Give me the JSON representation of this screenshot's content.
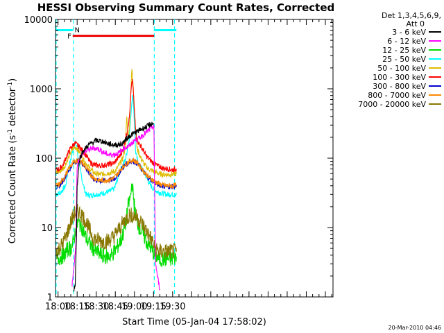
{
  "chart_data": {
    "type": "line",
    "title": "HESSI Observing Summary Count Rates, Corrected",
    "xlabel": "Start Time (05-Jan-04 17:58:02)",
    "ylabel": "Corrected Count Rate (s",
    "ylabel_sup1": "-1",
    "ylabel_mid": " detector",
    "ylabel_sup2": "-1",
    "ylabel_end": ")",
    "yscale": "log",
    "ylim": [
      1,
      10000
    ],
    "xlim_min": [
      1078,
      1296
    ],
    "x_ticks": [
      {
        "min": 1080,
        "label": "18:00"
      },
      {
        "min": 1095,
        "label": "18:15"
      },
      {
        "min": 1110,
        "label": "18:30"
      },
      {
        "min": 1125,
        "label": "18:45"
      },
      {
        "min": 1140,
        "label": "19:00"
      },
      {
        "min": 1155,
        "label": "19:15"
      },
      {
        "min": 1170,
        "label": "19:30"
      }
    ],
    "y_ticks": [
      {
        "value": 1,
        "label": "1"
      },
      {
        "value": 10,
        "label": "10"
      },
      {
        "value": 100,
        "label": "100"
      },
      {
        "value": 1000,
        "label": "1000"
      },
      {
        "value": 10000,
        "label": "10000"
      }
    ],
    "legend_header": [
      "Det 1,3,4,5,6,9,",
      "Att 0"
    ],
    "legend_position": "top-right outside plot",
    "annotations": {
      "flag_f": "F",
      "flag_n": "N",
      "timestamp": "20-Mar-2010 04:46"
    },
    "series": [
      {
        "name": "3 - 6 keV",
        "color": "#000000",
        "points": [
          [
            1092.5,
            1.3
          ],
          [
            1093.5,
            1.5
          ],
          [
            1094.5,
            8
          ],
          [
            1095,
            40
          ],
          [
            1096,
            65
          ],
          [
            1097,
            100
          ],
          [
            1100,
            130
          ],
          [
            1105,
            160
          ],
          [
            1110,
            180
          ],
          [
            1115,
            175
          ],
          [
            1120,
            160
          ],
          [
            1125,
            155
          ],
          [
            1130,
            160
          ],
          [
            1135,
            200
          ],
          [
            1138,
            220
          ],
          [
            1142,
            240
          ],
          [
            1145,
            260
          ],
          [
            1150,
            285
          ],
          [
            1153,
            310
          ],
          [
            1155,
            320
          ]
        ]
      },
      {
        "name": "6 - 12 keV",
        "color": "#ff00ff",
        "points": [
          [
            1091,
            1.4
          ],
          [
            1093,
            3.5
          ],
          [
            1094,
            5.5
          ],
          [
            1095,
            80
          ],
          [
            1098,
            110
          ],
          [
            1100,
            120
          ],
          [
            1103,
            130
          ],
          [
            1108,
            140
          ],
          [
            1112,
            135
          ],
          [
            1116,
            120
          ],
          [
            1120,
            112
          ],
          [
            1124,
            112
          ],
          [
            1128,
            120
          ],
          [
            1132,
            140
          ],
          [
            1136,
            150
          ],
          [
            1140,
            180
          ],
          [
            1143,
            190
          ],
          [
            1146,
            210
          ],
          [
            1150,
            240
          ],
          [
            1153,
            270
          ],
          [
            1155.3,
            290
          ],
          [
            1156.5,
            3.2
          ],
          [
            1158,
            2
          ],
          [
            1160,
            1.3
          ]
        ]
      },
      {
        "name": "12 - 25 keV",
        "color": "#00dd00",
        "points": [
          [
            1079,
            3.5
          ],
          [
            1082,
            3.8
          ],
          [
            1085,
            4
          ],
          [
            1088,
            5
          ],
          [
            1090,
            5
          ],
          [
            1092,
            6
          ],
          [
            1094,
            10
          ],
          [
            1096,
            12
          ],
          [
            1099,
            10
          ],
          [
            1102,
            7
          ],
          [
            1106,
            5.5
          ],
          [
            1110,
            4.5
          ],
          [
            1114,
            4
          ],
          [
            1118,
            3.8
          ],
          [
            1122,
            4
          ],
          [
            1126,
            5
          ],
          [
            1130,
            7
          ],
          [
            1133,
            11
          ],
          [
            1135,
            20
          ],
          [
            1137,
            28
          ],
          [
            1138,
            45
          ],
          [
            1139.5,
            25
          ],
          [
            1141,
            14
          ],
          [
            1144,
            10
          ],
          [
            1147,
            8
          ],
          [
            1150,
            6
          ],
          [
            1153,
            5
          ],
          [
            1156,
            4
          ],
          [
            1160,
            3.5
          ],
          [
            1165,
            3.5
          ],
          [
            1170,
            3.5
          ],
          [
            1173,
            3.8
          ]
        ]
      },
      {
        "name": "25 - 50 keV",
        "color": "#00ffff",
        "points": [
          [
            1078.5,
            30
          ],
          [
            1082,
            32
          ],
          [
            1086,
            40
          ],
          [
            1088,
            70
          ],
          [
            1090,
            95
          ],
          [
            1092,
            140
          ],
          [
            1093.5,
            165
          ],
          [
            1095,
            140
          ],
          [
            1096,
            90
          ],
          [
            1098,
            60
          ],
          [
            1100,
            40
          ],
          [
            1102,
            30
          ],
          [
            1105,
            29
          ],
          [
            1110,
            30
          ],
          [
            1115,
            31
          ],
          [
            1120,
            33
          ],
          [
            1124,
            36
          ],
          [
            1126,
            45
          ],
          [
            1128,
            60
          ],
          [
            1130,
            75
          ],
          [
            1133,
            95
          ],
          [
            1136,
            200
          ],
          [
            1137.5,
            500
          ],
          [
            1138.5,
            870
          ],
          [
            1139.5,
            500
          ],
          [
            1141,
            120
          ],
          [
            1143,
            85
          ],
          [
            1146,
            70
          ],
          [
            1149,
            55
          ],
          [
            1152,
            42
          ],
          [
            1155,
            36
          ],
          [
            1158,
            33
          ],
          [
            1162,
            31
          ],
          [
            1166,
            30
          ],
          [
            1170,
            30
          ],
          [
            1173,
            30
          ]
        ]
      },
      {
        "name": "50 - 100 keV",
        "color": "#ddbb00",
        "points": [
          [
            1078.5,
            62
          ],
          [
            1082,
            65
          ],
          [
            1085,
            75
          ],
          [
            1088,
            100
          ],
          [
            1090,
            120
          ],
          [
            1092,
            140
          ],
          [
            1094,
            145
          ],
          [
            1097,
            120
          ],
          [
            1100,
            95
          ],
          [
            1104,
            75
          ],
          [
            1108,
            62
          ],
          [
            1112,
            58
          ],
          [
            1117,
            60
          ],
          [
            1121,
            62
          ],
          [
            1125,
            65
          ],
          [
            1128,
            80
          ],
          [
            1131,
            100
          ],
          [
            1133,
            150
          ],
          [
            1134,
            400
          ],
          [
            1135,
            200
          ],
          [
            1136,
            250
          ],
          [
            1137,
            800
          ],
          [
            1138,
            1900
          ],
          [
            1139,
            1200
          ],
          [
            1140,
            500
          ],
          [
            1142,
            140
          ],
          [
            1145,
            100
          ],
          [
            1148,
            80
          ],
          [
            1151,
            70
          ],
          [
            1155,
            65
          ],
          [
            1159,
            60
          ],
          [
            1163,
            58
          ],
          [
            1168,
            58
          ],
          [
            1173,
            60
          ]
        ]
      },
      {
        "name": "100 - 300 keV",
        "color": "#ff0000",
        "points": [
          [
            1078.5,
            68
          ],
          [
            1081,
            70
          ],
          [
            1084,
            80
          ],
          [
            1087,
            110
          ],
          [
            1090,
            140
          ],
          [
            1093,
            165
          ],
          [
            1096,
            150
          ],
          [
            1099,
            130
          ],
          [
            1102,
            110
          ],
          [
            1105,
            88
          ],
          [
            1108,
            80
          ],
          [
            1112,
            78
          ],
          [
            1116,
            79
          ],
          [
            1120,
            82
          ],
          [
            1124,
            85
          ],
          [
            1128,
            105
          ],
          [
            1131,
            130
          ],
          [
            1134,
            230
          ],
          [
            1136,
            380
          ],
          [
            1137.5,
            1000
          ],
          [
            1138.5,
            1350
          ],
          [
            1139.5,
            700
          ],
          [
            1141,
            230
          ],
          [
            1143,
            170
          ],
          [
            1146,
            140
          ],
          [
            1149,
            110
          ],
          [
            1152,
            95
          ],
          [
            1155,
            85
          ],
          [
            1158,
            78
          ],
          [
            1162,
            72
          ],
          [
            1166,
            70
          ],
          [
            1170,
            68
          ],
          [
            1173,
            70
          ]
        ]
      },
      {
        "name": "300 - 800 keV",
        "color": "#0000cc",
        "points": [
          [
            1078.5,
            38
          ],
          [
            1081,
            40
          ],
          [
            1084,
            48
          ],
          [
            1087,
            60
          ],
          [
            1090,
            75
          ],
          [
            1093,
            88
          ],
          [
            1096,
            92
          ],
          [
            1099,
            85
          ],
          [
            1102,
            72
          ],
          [
            1105,
            58
          ],
          [
            1108,
            50
          ],
          [
            1112,
            47
          ],
          [
            1116,
            47
          ],
          [
            1120,
            48
          ],
          [
            1124,
            50
          ],
          [
            1127,
            58
          ],
          [
            1130,
            70
          ],
          [
            1133,
            80
          ],
          [
            1136,
            88
          ],
          [
            1139,
            92
          ],
          [
            1142,
            85
          ],
          [
            1145,
            72
          ],
          [
            1148,
            60
          ],
          [
            1151,
            52
          ],
          [
            1155,
            46
          ],
          [
            1158,
            42
          ],
          [
            1162,
            40
          ],
          [
            1166,
            39
          ],
          [
            1170,
            39
          ],
          [
            1173,
            39
          ]
        ]
      },
      {
        "name": "800 - 7000 keV",
        "color": "#ff8800",
        "points": [
          [
            1078.5,
            40
          ],
          [
            1081,
            42
          ],
          [
            1084,
            50
          ],
          [
            1087,
            63
          ],
          [
            1090,
            78
          ],
          [
            1093,
            90
          ],
          [
            1096,
            93
          ],
          [
            1099,
            86
          ],
          [
            1102,
            73
          ],
          [
            1105,
            60
          ],
          [
            1108,
            52
          ],
          [
            1112,
            48
          ],
          [
            1116,
            48
          ],
          [
            1120,
            49
          ],
          [
            1124,
            52
          ],
          [
            1127,
            60
          ],
          [
            1130,
            72
          ],
          [
            1133,
            83
          ],
          [
            1136,
            90
          ],
          [
            1139,
            94
          ],
          [
            1142,
            87
          ],
          [
            1145,
            74
          ],
          [
            1148,
            62
          ],
          [
            1151,
            54
          ],
          [
            1155,
            48
          ],
          [
            1158,
            44
          ],
          [
            1162,
            41
          ],
          [
            1166,
            40
          ],
          [
            1170,
            40
          ],
          [
            1173,
            41
          ]
        ]
      },
      {
        "name": "7000 - 20000 keV",
        "color": "#887700",
        "points": [
          [
            1078.5,
            4.5
          ],
          [
            1081,
            5
          ],
          [
            1084,
            6
          ],
          [
            1087,
            8
          ],
          [
            1090,
            12
          ],
          [
            1093,
            16
          ],
          [
            1096,
            17
          ],
          [
            1099,
            15
          ],
          [
            1102,
            12
          ],
          [
            1105,
            9
          ],
          [
            1108,
            7
          ],
          [
            1112,
            6.5
          ],
          [
            1116,
            6.3
          ],
          [
            1120,
            6.5
          ],
          [
            1124,
            7.5
          ],
          [
            1127,
            9
          ],
          [
            1130,
            11
          ],
          [
            1133,
            13
          ],
          [
            1136,
            15
          ],
          [
            1139,
            15
          ],
          [
            1142,
            14
          ],
          [
            1145,
            12
          ],
          [
            1148,
            10
          ],
          [
            1151,
            8
          ],
          [
            1154,
            6.5
          ],
          [
            1156,
            5
          ],
          [
            1160,
            4.5
          ],
          [
            1166,
            4.5
          ],
          [
            1170,
            4.5
          ],
          [
            1173,
            4.5
          ]
        ]
      }
    ],
    "flag_bars": [
      {
        "color": "#00ffff",
        "x0": 1078.5,
        "x1": 1091.5,
        "y": 7000
      },
      {
        "color": "#ee0000",
        "x0": 1091.5,
        "x1": 1155.5,
        "y": 5800
      },
      {
        "color": "#00ffff",
        "x0": 1155.5,
        "x1": 1173,
        "y": 7000
      }
    ],
    "flag_lines_min": [
      1078.5,
      1092.2,
      1155.6,
      1171.5
    ]
  }
}
